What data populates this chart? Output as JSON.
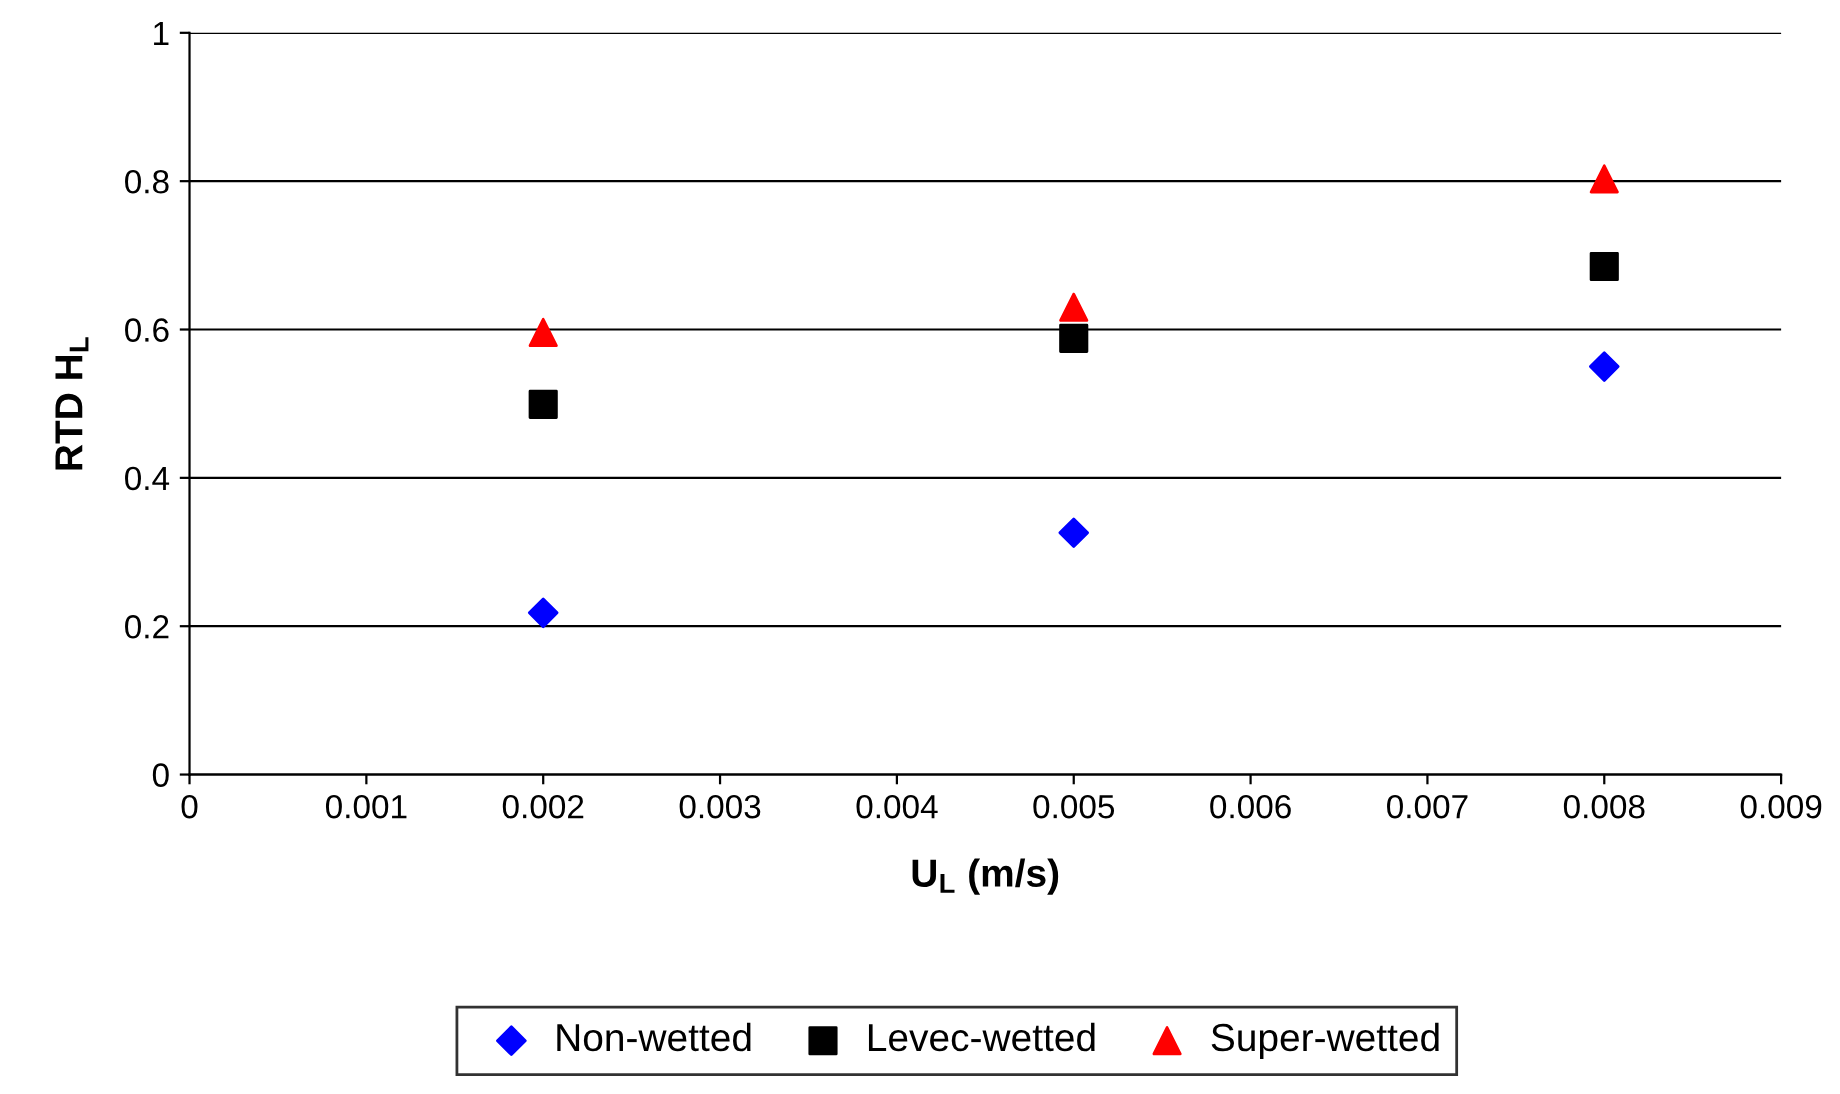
{
  "chart_data": {
    "type": "scatter",
    "xlabel": "U$_{L}$ (m/s)",
    "ylabel": "RTD H$_{L}$",
    "x": [
      0.002,
      0.005,
      0.008
    ],
    "series": [
      {
        "name": "Non-wetted",
        "color": "#0000ff",
        "marker": "diamond",
        "values": [
          0.218,
          0.326,
          0.55
        ]
      },
      {
        "name": "Levec-wetted",
        "color": "#000000",
        "marker": "square",
        "values": [
          0.499,
          0.588,
          0.685
        ]
      },
      {
        "name": "Super-wetted",
        "color": "#ff0000",
        "marker": "triangle",
        "values": [
          0.596,
          0.63,
          0.803
        ]
      }
    ],
    "xlim": [
      0,
      0.009
    ],
    "xticks": [
      0,
      0.001,
      0.002,
      0.003,
      0.004,
      0.005,
      0.006,
      0.007,
      0.008,
      0.009
    ],
    "ylim": [
      0,
      1
    ],
    "yticks": [
      0,
      0.2,
      0.4,
      0.6,
      0.8,
      1
    ],
    "grid": "y",
    "legend": "bottom"
  }
}
